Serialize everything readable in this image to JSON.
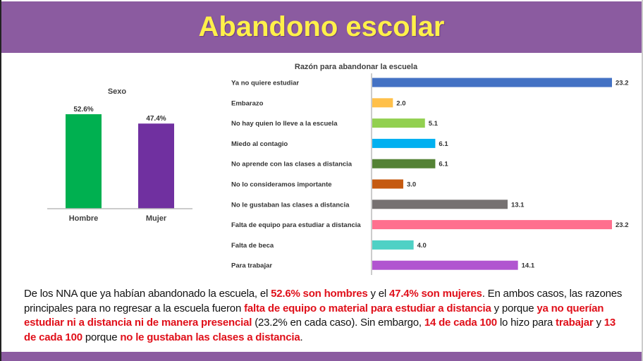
{
  "header": {
    "title": "Abandono escolar"
  },
  "chart_data": [
    {
      "type": "bar",
      "title": "Sexo",
      "categories": [
        "Hombre",
        "Mujer"
      ],
      "values": [
        52.6,
        47.4
      ],
      "value_labels": [
        "52.6%",
        "47.4%"
      ],
      "colors": [
        "#00B050",
        "#7030A0"
      ],
      "ylim": [
        0,
        60
      ]
    },
    {
      "type": "bar",
      "orientation": "horizontal",
      "title": "Razón para abandonar la escuela",
      "categories": [
        "Ya no quiere estudiar",
        "Embarazo",
        "No hay quien lo lleve a la escuela",
        "Miedo al contagio",
        "No aprende con las clases a distancia",
        "No lo consideramos importante",
        "No le gustaban las clases a distancia",
        "Falta de equipo para estudiar a distancia",
        "Falta de beca",
        "Para trabajar"
      ],
      "values": [
        23.2,
        2.0,
        5.1,
        6.1,
        6.1,
        3.0,
        13.1,
        23.2,
        4.0,
        14.1
      ],
      "value_labels": [
        "23.2",
        "2.0",
        "5.1",
        "6.1",
        "6.1",
        "3.0",
        "13.1",
        "23.2",
        "4.0",
        "14.1"
      ],
      "colors": [
        "#4472C4",
        "#FFC04A",
        "#92D050",
        "#00B0F0",
        "#548235",
        "#C55A11",
        "#767171",
        "#FF6F8E",
        "#4FD1C5",
        "#B155D0"
      ],
      "xlim": [
        0,
        23.2
      ]
    }
  ],
  "paragraph": [
    {
      "t": "De los NNA que ya habían abandonado la escuela, el ",
      "h": false
    },
    {
      "t": "52.6% son hombres",
      "h": true
    },
    {
      "t": " y el ",
      "h": false
    },
    {
      "t": "47.4% son mujeres",
      "h": true
    },
    {
      "t": ". En ambos casos, las razones principales para no regresar a la escuela fueron ",
      "h": false
    },
    {
      "t": "falta de equipo o material para estudiar a distancia",
      "h": true
    },
    {
      "t": " y porque ",
      "h": false
    },
    {
      "t": "ya no querían estudiar ni a distancia ni de manera presencial",
      "h": true
    },
    {
      "t": " (23.2% en cada caso). Sin embargo, ",
      "h": false
    },
    {
      "t": "14 de cada 100",
      "h": true
    },
    {
      "t": " lo hizo para ",
      "h": false
    },
    {
      "t": "trabajar",
      "h": true
    },
    {
      "t": " y ",
      "h": false
    },
    {
      "t": "13 de cada 100",
      "h": true
    },
    {
      "t": " porque ",
      "h": false
    },
    {
      "t": "no le gustaban las clases a distancia",
      "h": true
    },
    {
      "t": ".",
      "h": false
    }
  ]
}
